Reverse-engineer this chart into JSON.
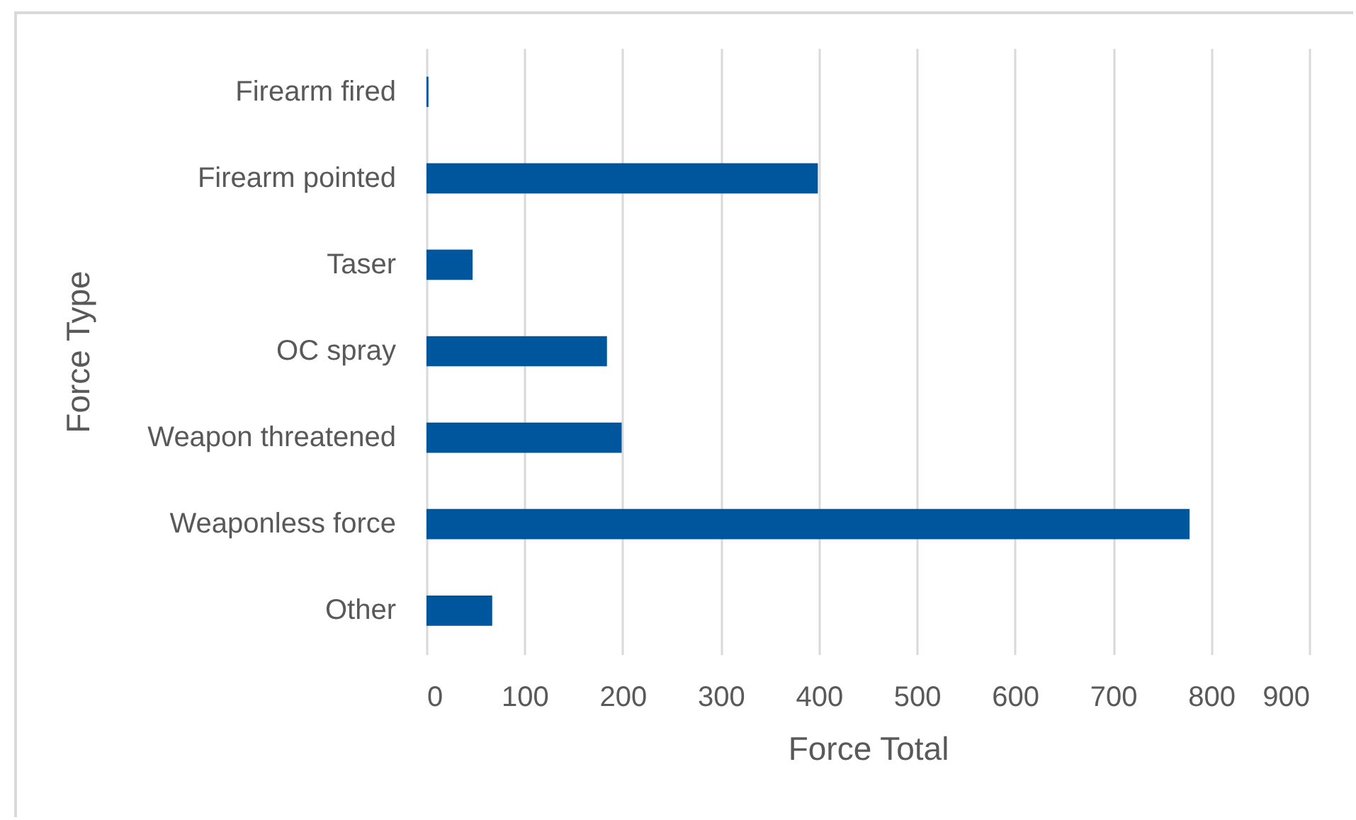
{
  "chart_data": {
    "type": "bar",
    "orientation": "horizontal",
    "categories": [
      "Firearm fired",
      "Firearm pointed",
      "Taser",
      "OC spray",
      "Weapon threatened",
      "Weaponless force",
      "Other"
    ],
    "values": [
      2,
      399,
      47,
      184,
      199,
      778,
      67
    ],
    "color": "#00569c",
    "xlim": [
      0,
      900
    ],
    "xticks": [
      0,
      100,
      200,
      300,
      400,
      500,
      600,
      700,
      800,
      900
    ],
    "xlabel": "Force Total",
    "ylabel": "Force Type",
    "grid": "x"
  }
}
